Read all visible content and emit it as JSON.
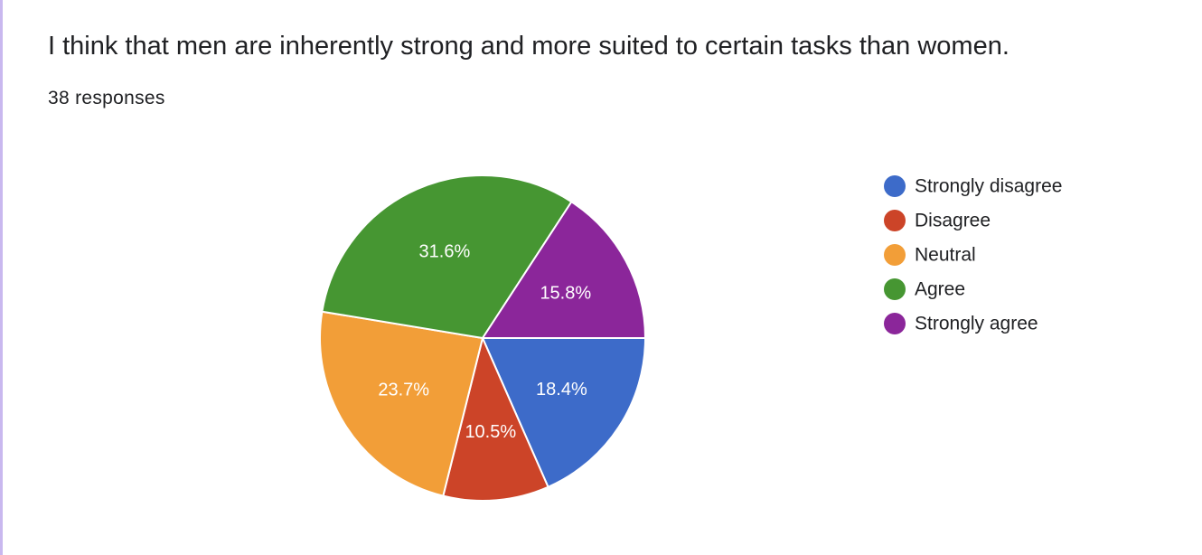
{
  "question": {
    "title": "I think that men are inherently strong and more suited to certain tasks than women.",
    "responses": "38 responses"
  },
  "chart_data": {
    "type": "pie",
    "title": "I think that men are inherently strong and more suited to certain tasks than women.",
    "subtitle": "38 responses",
    "start_angle_deg": 90,
    "direction": "clockwise",
    "legend_position": "right",
    "categories": [
      "Strongly disagree",
      "Disagree",
      "Neutral",
      "Agree",
      "Strongly agree"
    ],
    "values": [
      18.4,
      10.5,
      23.7,
      31.6,
      15.8
    ],
    "labels": [
      "18.4%",
      "10.5%",
      "23.7%",
      "31.6%",
      "15.8%"
    ],
    "colors": [
      "#3d6bc9",
      "#cc4428",
      "#f29e38",
      "#469632",
      "#8b269a"
    ]
  }
}
